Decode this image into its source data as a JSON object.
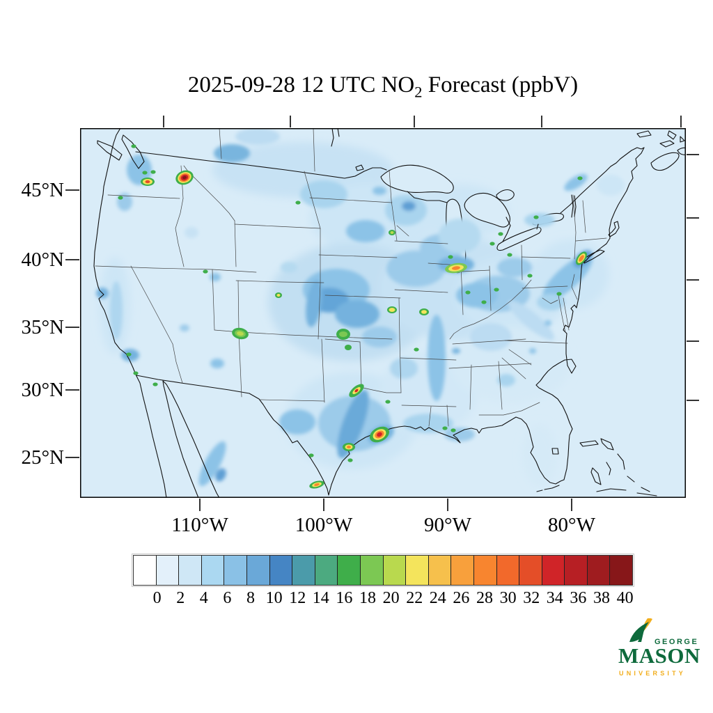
{
  "title": {
    "prefix": "2025-09-28 12 UTC NO",
    "subscript": "2",
    "suffix": " Forecast (ppbV)"
  },
  "axes": {
    "lat_labels": [
      "45°N",
      "40°N",
      "35°N",
      "30°N",
      "25°N"
    ],
    "lon_labels": [
      "110°W",
      "100°W",
      "90°W",
      "80°W"
    ]
  },
  "colorbar": {
    "labels": [
      "0",
      "2",
      "4",
      "6",
      "8",
      "10",
      "12",
      "14",
      "16",
      "18",
      "20",
      "22",
      "24",
      "26",
      "28",
      "30",
      "32",
      "34",
      "36",
      "38",
      "40"
    ],
    "colors": [
      "#ffffff",
      "#e3f0fa",
      "#cfe7f6",
      "#abd8f1",
      "#8ac1e6",
      "#6aa8d8",
      "#4585c4",
      "#4b9baa",
      "#4caa80",
      "#3fae4a",
      "#7cc853",
      "#b9d94e",
      "#f4e45c",
      "#f6c04c",
      "#f8a03c",
      "#f8852f",
      "#f2692b",
      "#e44e28",
      "#d02428",
      "#b71f24",
      "#9f1c1f",
      "#871719"
    ]
  },
  "map": {
    "ocean_color": "#d9ecf8",
    "outline_color": "#111111",
    "state_line_color": "#444444"
  },
  "logo": {
    "line1": "GEORGE",
    "line2": "MASON",
    "line3": "UNIVERSITY",
    "green": "#0e6a3c",
    "gold": "#f2ae1d"
  }
}
